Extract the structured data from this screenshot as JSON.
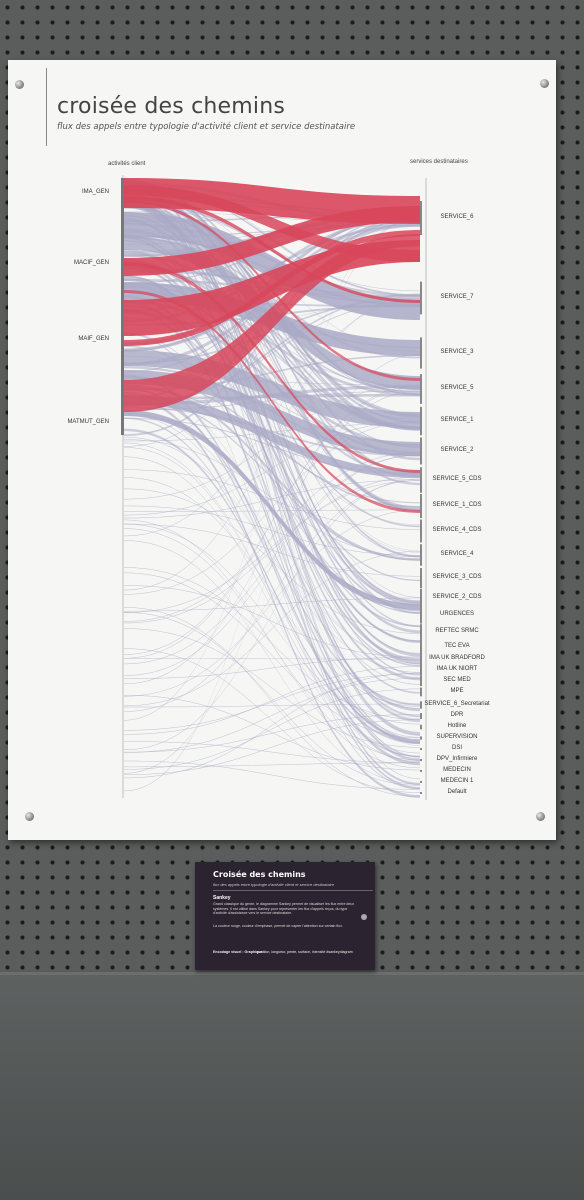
{
  "poster": {
    "title": "croisée des chemins",
    "subtitle": "flux des appels entre typologie d'activité client et service destinataire"
  },
  "sankey": {
    "source_header": "activités client",
    "target_header": "services destinataires",
    "sources": [
      "IMA_GEN",
      "MACIF_GEN",
      "MAIF_GEN",
      "MATMUT_GEN"
    ],
    "targets": [
      "SERVICE_6",
      "SERVICE_7",
      "SERVICE_3",
      "SERVICE_5",
      "SERVICE_1",
      "SERVICE_2",
      "SERVICE_5_CDS",
      "SERVICE_1_CDS",
      "SERVICE_4_CDS",
      "SERVICE_4",
      "SERVICE_3_CDS",
      "SERVICE_2_CDS",
      "URGENCES",
      "REFTEC SRMC",
      "TEC EVA",
      "IMA UK BRADFORD",
      "IMA UK NIORT",
      "SEC MED",
      "MPE",
      "SERVICE_6_Secretariat",
      "DPR",
      "Hotline",
      "SUPERVISION",
      "DSI",
      "DPV_Infirmiere",
      "MEDECIN",
      "MEDECIN 1",
      "Default"
    ],
    "colors": {
      "emphasis": "#d8465a",
      "neutral": "#a9a9c6",
      "poster": "#f6f6f4"
    }
  },
  "placard": {
    "title": "Croisée des chemins",
    "subtitle": "flux des appels entre typologie d'activité client et service destinataire",
    "section": "Sankey",
    "body1": "Grand classique du genre, le diagramme Sankey permet de visualiser les flux entre deux systèmes. Il est utilisé dans Sankey pour représenter les flux d'appels reçus, du type d'activité d'assistance vers le service destinataire.",
    "body2": "La couleur rouge, couleur d'emphase, permet de capter l'attention sur certain flux.",
    "key_label": "Encodage visuel : Graphique :",
    "key_value": "position, longueur, pente, surface, intensité #sankeydiagram"
  }
}
